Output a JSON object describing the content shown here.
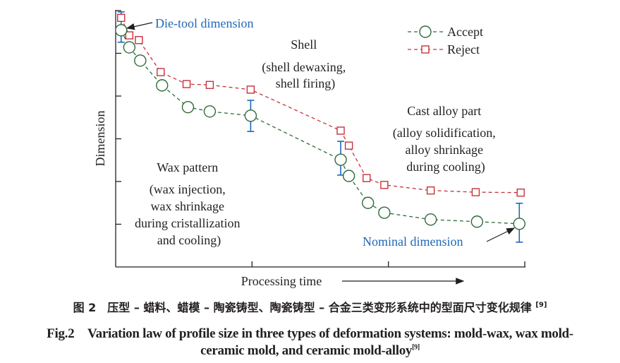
{
  "chart_data": {
    "type": "line",
    "title": "",
    "xlabel": "Processing time",
    "ylabel": "Dimension",
    "xlim": [
      0,
      3
    ],
    "ylim": [
      0,
      6
    ],
    "x_ticks": [
      1,
      2,
      3
    ],
    "y_ticks": [
      1,
      2,
      3,
      4,
      5,
      6
    ],
    "tick_labels_shown": false,
    "grid": false,
    "legend_position": "top-right",
    "series": [
      {
        "name": "Accept",
        "marker": "circle",
        "line": "dashed",
        "color": "#2e6b38",
        "x": [
          0.04,
          0.1,
          0.18,
          0.34,
          0.53,
          0.69,
          0.99,
          1.65,
          1.71,
          1.85,
          1.97,
          2.31,
          2.65,
          2.96
        ],
        "y": [
          5.54,
          5.14,
          4.83,
          4.25,
          3.74,
          3.64,
          3.54,
          2.51,
          2.13,
          1.5,
          1.27,
          1.11,
          1.06,
          1.01
        ]
      },
      {
        "name": "Reject",
        "marker": "square",
        "line": "dashed",
        "color": "#c8323c",
        "x": [
          0.04,
          0.1,
          0.17,
          0.33,
          0.52,
          0.69,
          0.99,
          1.65,
          1.71,
          1.84,
          1.97,
          2.31,
          2.64,
          2.97
        ],
        "y": [
          5.83,
          5.42,
          5.31,
          4.56,
          4.28,
          4.26,
          4.15,
          3.19,
          2.84,
          2.08,
          1.92,
          1.79,
          1.75,
          1.74
        ]
      }
    ],
    "error_bars": {
      "color": "#1f68b8",
      "items": [
        {
          "x": 0.04,
          "low": 5.26,
          "high": 5.97
        },
        {
          "x": 0.99,
          "low": 3.17,
          "high": 3.9
        },
        {
          "x": 1.65,
          "low": 2.15,
          "high": 2.94
        },
        {
          "x": 2.96,
          "low": 0.58,
          "high": 1.49
        }
      ]
    },
    "annotations": [
      {
        "lines": [
          "Die-tool dimension"
        ],
        "color": "#1f68b8"
      },
      {
        "lines": [
          "Shell",
          "(shell dewaxing,",
          "shell firing)"
        ]
      },
      {
        "lines": [
          "Cast alloy part",
          "(alloy solidification,",
          "alloy shrinkage",
          "during cooling)"
        ]
      },
      {
        "lines": [
          "Wax pattern",
          "(wax injection,",
          "wax shrinkage",
          "during cristallization",
          "and cooling)"
        ]
      },
      {
        "lines": [
          "Nominal dimension"
        ],
        "color": "#1f68b8"
      }
    ]
  },
  "caption": {
    "cn": "图 2　压型 – 蜡料、蜡模 – 陶瓷铸型、陶瓷铸型 – 合金三类变形系统中的型面尺寸变化规律",
    "cn_ref": "[9]",
    "en_line1": "Fig.2　Variation law of profile size in three types of deformation systems: mold-wax, wax mold-",
    "en_line2": "ceramic mold, and ceramic mold-alloy",
    "en_ref": "[9]"
  }
}
